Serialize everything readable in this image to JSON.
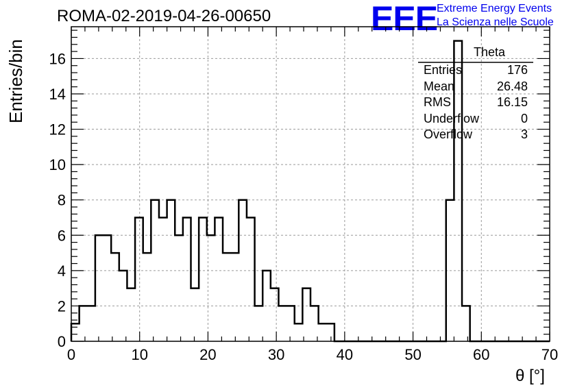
{
  "header": {
    "run_title": "ROMA-02-2019-04-26-00650",
    "logo_text": "EEE",
    "logo_line1": "Extreme Energy Events",
    "logo_line2": "La Scienza nelle Scuole"
  },
  "stats_box": {
    "title": "Theta",
    "rows": [
      {
        "label": "Entries",
        "value": "176"
      },
      {
        "label": "Mean",
        "value": "26.48"
      },
      {
        "label": "RMS",
        "value": "16.15"
      },
      {
        "label": "Underflow",
        "value": "0"
      },
      {
        "label": "Overflow",
        "value": "3"
      }
    ]
  },
  "chart_data": {
    "type": "bar",
    "histogram": true,
    "xlabel": "θ [°]",
    "ylabel": "Entries/bin",
    "xlim": [
      0,
      70
    ],
    "ylim": [
      0,
      17.8
    ],
    "bin_width": 1.1666667,
    "bin_start": 0,
    "values": [
      1,
      2,
      2,
      6,
      6,
      5,
      4,
      3,
      7,
      5,
      8,
      7,
      8,
      6,
      7,
      3,
      7,
      6,
      7,
      5,
      5,
      8,
      7,
      2,
      4,
      3,
      2,
      2,
      1,
      3,
      2,
      1,
      1,
      0,
      0,
      0,
      0,
      0,
      0,
      0,
      0,
      0,
      0,
      0,
      0,
      0,
      0,
      8,
      17,
      2,
      0,
      0,
      0,
      0,
      0,
      0,
      0,
      0,
      0,
      0
    ],
    "xticks": [
      0,
      10,
      20,
      30,
      40,
      50,
      60,
      70
    ],
    "yticks": [
      0,
      2,
      4,
      6,
      8,
      10,
      12,
      14,
      16
    ],
    "grid": true,
    "legend": "stats box top-right"
  }
}
